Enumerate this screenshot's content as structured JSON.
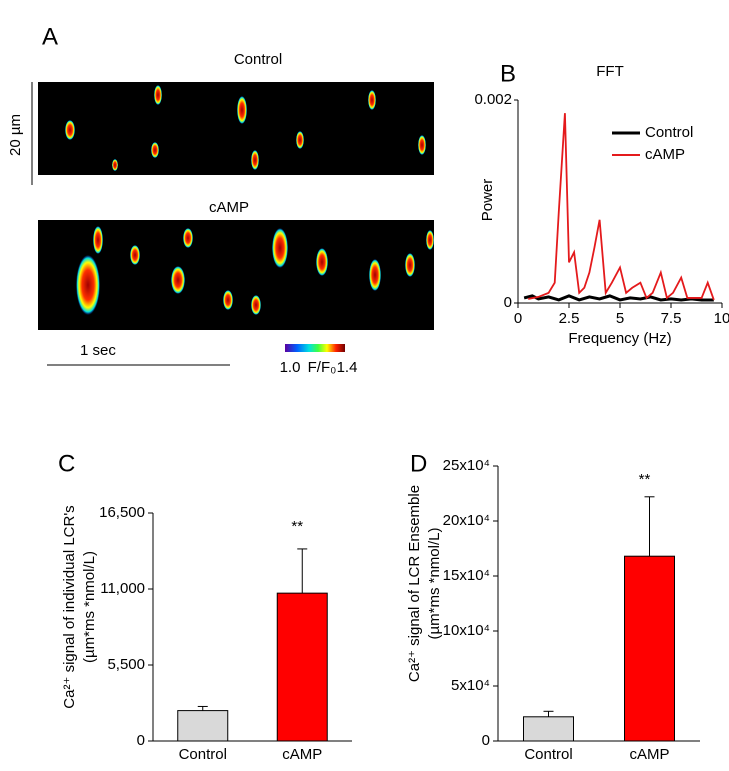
{
  "panel_a": {
    "letter": "A",
    "top_title": "Control",
    "bottom_title": "cAMP",
    "scale_y": "20 µm",
    "scale_x": "1 sec",
    "colorbar": {
      "min": "1.0",
      "label": "F/F₀",
      "max": "1.4"
    }
  },
  "chart_data": [
    {
      "type": "line",
      "letter": "B",
      "title": "FFT",
      "xlabel": "Frequency (Hz)",
      "ylabel": "Power",
      "xlim": [
        0,
        10
      ],
      "xticks": [
        0,
        2.5,
        5,
        7.5,
        10
      ],
      "ylim": [
        0,
        0.002
      ],
      "yticks": [
        0,
        0.002
      ],
      "legend": "upper right",
      "series": [
        {
          "name": "Control",
          "color": "#000000",
          "x": [
            0.3,
            0.7,
            1.0,
            1.5,
            2.0,
            2.5,
            3.0,
            3.5,
            4.0,
            4.5,
            5.0,
            5.5,
            6.0,
            6.5,
            7.0,
            7.5,
            8.0,
            8.5,
            9.0,
            9.6
          ],
          "values": [
            5e-05,
            7e-05,
            4e-05,
            6e-05,
            3e-05,
            7e-05,
            3e-05,
            6e-05,
            4e-05,
            7e-05,
            3e-05,
            5e-05,
            4e-05,
            6e-05,
            3e-05,
            4e-05,
            3e-05,
            4e-05,
            3e-05,
            3e-05
          ]
        },
        {
          "name": "cAMP",
          "color": "#e41a1c",
          "x": [
            0.5,
            1.0,
            1.5,
            1.8,
            2.0,
            2.3,
            2.5,
            2.75,
            3.0,
            3.25,
            3.5,
            3.75,
            4.0,
            4.3,
            4.6,
            5.0,
            5.3,
            5.6,
            6.0,
            6.3,
            6.6,
            7.0,
            7.3,
            7.6,
            8.0,
            8.3,
            8.6,
            9.0,
            9.3,
            9.6
          ],
          "values": [
            4e-05,
            6e-05,
            0.0001,
            0.0002,
            0.0009,
            0.00187,
            0.0004,
            0.0005,
            0.0001,
            0.00015,
            0.0003,
            0.00055,
            0.00082,
            0.0001,
            0.0002,
            0.00035,
            0.0001,
            0.00015,
            0.0002,
            5e-05,
            0.0001,
            0.0003,
            5e-05,
            0.0001,
            0.00025,
            5e-05,
            5e-05,
            5e-05,
            0.0002,
            3e-05
          ]
        }
      ]
    },
    {
      "type": "bar",
      "letter": "C",
      "ylabel": [
        "Ca²⁺ signal of individual LCR's",
        "(µm*ms *nmol/L)"
      ],
      "categories": [
        "Control",
        "cAMP"
      ],
      "values": [
        2200,
        10700
      ],
      "errors": [
        300,
        3200
      ],
      "colors": [
        "#d9d9d9",
        "#ff0000"
      ],
      "annotations": [
        null,
        "**"
      ],
      "ylim": [
        0,
        16500
      ],
      "yticks": [
        0,
        {
          "value": 5500,
          "label": "5,500"
        },
        {
          "value": 11000,
          "label": "11,000"
        },
        {
          "value": 16500,
          "label": "16,500"
        }
      ]
    },
    {
      "type": "bar",
      "letter": "D",
      "ylabel": [
        "Ca²⁺ signal of LCR Ensemble",
        "(µm*ms *nmol/L)"
      ],
      "categories": [
        "Control",
        "cAMP"
      ],
      "values": [
        22000,
        168000
      ],
      "errors": [
        5000,
        54000
      ],
      "colors": [
        "#d9d9d9",
        "#ff0000"
      ],
      "annotations": [
        null,
        "**"
      ],
      "ylim": [
        0,
        250000
      ],
      "yticks": [
        0,
        {
          "value": 50000,
          "label": "5x10⁴"
        },
        {
          "value": 100000,
          "label": "10x10⁴"
        },
        {
          "value": 150000,
          "label": "15x10⁴"
        },
        {
          "value": 200000,
          "label": "20x10⁴"
        },
        {
          "value": 250000,
          "label": "25x10⁴"
        }
      ]
    }
  ]
}
